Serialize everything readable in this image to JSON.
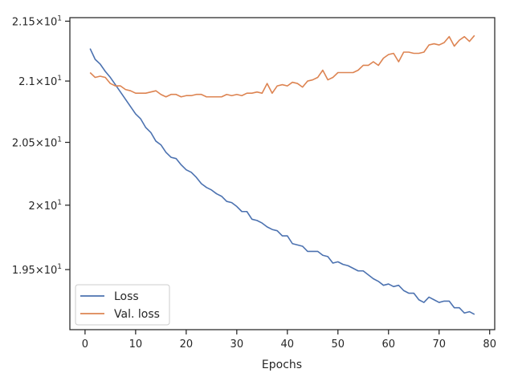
{
  "chart_data": {
    "type": "line",
    "xlabel": "Epochs",
    "ylabel": "",
    "title": "",
    "xlim": [
      -3,
      81
    ],
    "ylim": [
      19.045,
      21.53
    ],
    "y_scale": "log",
    "grid": false,
    "legend_placement": "lower-left",
    "x_ticks": [
      {
        "value": 0,
        "label": "0"
      },
      {
        "value": 10,
        "label": "10"
      },
      {
        "value": 20,
        "label": "20"
      },
      {
        "value": 30,
        "label": "30"
      },
      {
        "value": 40,
        "label": "40"
      },
      {
        "value": 50,
        "label": "50"
      },
      {
        "value": 60,
        "label": "60"
      },
      {
        "value": 70,
        "label": "70"
      },
      {
        "value": 80,
        "label": "80"
      }
    ],
    "y_ticks": [
      {
        "value": 19.5,
        "base": "1.95",
        "exp": "1"
      },
      {
        "value": 20.0,
        "base": "2",
        "exp": "1"
      },
      {
        "value": 20.5,
        "base": "2.05",
        "exp": "1"
      },
      {
        "value": 21.0,
        "base": "2.1",
        "exp": "1"
      },
      {
        "value": 21.5,
        "base": "2.15",
        "exp": "1"
      }
    ],
    "x": [
      1,
      2,
      3,
      4,
      5,
      6,
      7,
      8,
      9,
      10,
      11,
      12,
      13,
      14,
      15,
      16,
      17,
      18,
      19,
      20,
      21,
      22,
      23,
      24,
      25,
      26,
      27,
      28,
      29,
      30,
      31,
      32,
      33,
      34,
      35,
      36,
      37,
      38,
      39,
      40,
      41,
      42,
      43,
      44,
      45,
      46,
      47,
      48,
      49,
      50,
      51,
      52,
      53,
      54,
      55,
      56,
      57,
      58,
      59,
      60,
      61,
      62,
      63,
      64,
      65,
      66,
      67,
      68,
      69,
      70,
      71,
      72,
      73,
      74,
      75,
      76,
      77
    ],
    "series": [
      {
        "name": "Loss",
        "color": "#4c72b0",
        "values": [
          21.27,
          21.18,
          21.14,
          21.08,
          21.03,
          20.97,
          20.91,
          20.85,
          20.79,
          20.73,
          20.69,
          20.62,
          20.58,
          20.51,
          20.48,
          20.42,
          20.38,
          20.37,
          20.32,
          20.28,
          20.26,
          20.22,
          20.17,
          20.14,
          20.12,
          20.09,
          20.07,
          20.03,
          20.02,
          19.99,
          19.95,
          19.95,
          19.89,
          19.88,
          19.86,
          19.83,
          19.81,
          19.8,
          19.76,
          19.76,
          19.7,
          19.69,
          19.68,
          19.64,
          19.64,
          19.64,
          19.61,
          19.6,
          19.55,
          19.56,
          19.54,
          19.53,
          19.51,
          19.49,
          19.49,
          19.46,
          19.43,
          19.41,
          19.38,
          19.39,
          19.37,
          19.38,
          19.34,
          19.32,
          19.32,
          19.27,
          19.25,
          19.29,
          19.27,
          19.25,
          19.26,
          19.26,
          19.21,
          19.21,
          19.17,
          19.18,
          19.16
        ]
      },
      {
        "name": "Val. loss",
        "color": "#dd8452",
        "values": [
          21.07,
          21.03,
          21.04,
          21.03,
          20.98,
          20.96,
          20.96,
          20.93,
          20.92,
          20.9,
          20.9,
          20.9,
          20.91,
          20.92,
          20.89,
          20.87,
          20.89,
          20.89,
          20.87,
          20.88,
          20.88,
          20.89,
          20.89,
          20.87,
          20.87,
          20.87,
          20.87,
          20.89,
          20.88,
          20.89,
          20.88,
          20.9,
          20.9,
          20.91,
          20.9,
          20.98,
          20.9,
          20.96,
          20.97,
          20.96,
          20.99,
          20.98,
          20.95,
          21.0,
          21.01,
          21.03,
          21.09,
          21.01,
          21.03,
          21.07,
          21.07,
          21.07,
          21.07,
          21.09,
          21.13,
          21.13,
          21.16,
          21.13,
          21.19,
          21.22,
          21.23,
          21.16,
          21.24,
          21.24,
          21.23,
          21.23,
          21.24,
          21.3,
          21.31,
          21.3,
          21.32,
          21.37,
          21.29,
          21.34,
          21.37,
          21.33,
          21.38
        ]
      }
    ]
  }
}
